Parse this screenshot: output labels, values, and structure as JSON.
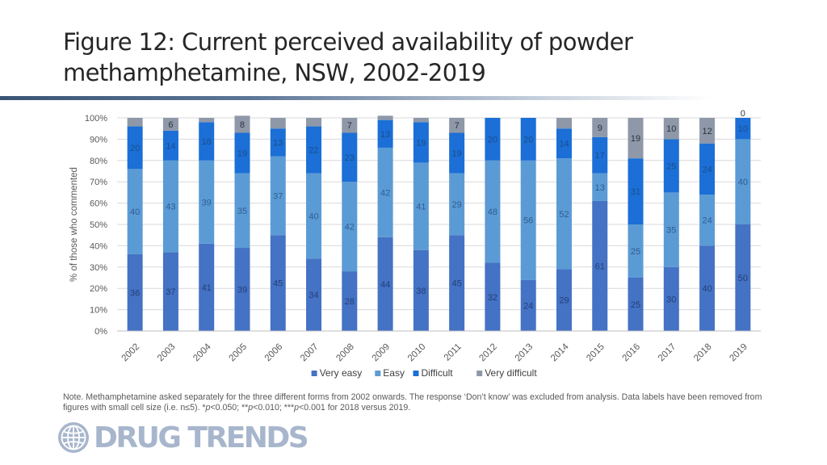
{
  "title": "Figure 12: Current perceived availability of powder methamphetamine, NSW, 2002-2019",
  "note": {
    "pre": "Note. Methamphetamine asked separately for the three different forms from 2002 onwards. The response ‘Don’t know’ was excluded from analysis. Data labels have been removed from figures with small cell size (i.e. n≤5).  *",
    "p1": "p",
    "mid1": "<0.050; **",
    "p2": "p",
    "mid2": "<0.010; ***",
    "p3": "p",
    "post": "<0.001 for 2018 versus 2019."
  },
  "logo": {
    "text": "DRUG TRENDS",
    "icon": "globe-icon"
  },
  "chart_data": {
    "type": "bar",
    "stacked": true,
    "title": "",
    "xlabel": "",
    "ylabel": "% of those who commented",
    "ylim": [
      0,
      100
    ],
    "yticks": [
      "0%",
      "10%",
      "20%",
      "30%",
      "40%",
      "50%",
      "60%",
      "70%",
      "80%",
      "90%",
      "100%"
    ],
    "grid": true,
    "legend_position": "bottom",
    "categories": [
      "2002",
      "2003",
      "2004",
      "2005",
      "2006",
      "2007",
      "2008",
      "2009",
      "2010",
      "2011",
      "2012",
      "2013",
      "2014",
      "2015",
      "2016",
      "2017",
      "2018",
      "2019"
    ],
    "series": [
      {
        "name": "Very easy",
        "color": "#4472c4",
        "values": [
          36,
          37,
          41,
          39,
          45,
          34,
          28,
          44,
          38,
          45,
          32,
          24,
          29,
          61,
          25,
          30,
          40,
          50
        ],
        "labels": [
          "36",
          "37",
          "41",
          "39",
          "45",
          "34",
          "28",
          "44",
          "38",
          "45",
          "32",
          "24",
          "29",
          "61",
          "25",
          "30",
          "40",
          "50"
        ]
      },
      {
        "name": "Easy",
        "color": "#5b9bd5",
        "values": [
          40,
          43,
          39,
          35,
          37,
          40,
          42,
          42,
          41,
          29,
          48,
          56,
          52,
          13,
          25,
          35,
          24,
          40
        ],
        "labels": [
          "40",
          "43",
          "39",
          "35",
          "37",
          "40",
          "42",
          "42",
          "41",
          "29",
          "48",
          "56",
          "52",
          "13",
          "25",
          "35",
          "24",
          "40"
        ]
      },
      {
        "name": "Difficult",
        "color": "#1b6fd6",
        "values": [
          20,
          14,
          18,
          19,
          13,
          22,
          23,
          13,
          19,
          19,
          20,
          20,
          14,
          17,
          31,
          25,
          24,
          10
        ],
        "labels": [
          "20",
          "14",
          "18",
          "19",
          "13",
          "22",
          "23",
          "13",
          "19",
          "19",
          "20",
          "20",
          "14",
          "17",
          "31",
          "25",
          "24",
          "10"
        ]
      },
      {
        "name": "Very difficult",
        "color": "#8e98a8",
        "values": [
          4,
          6,
          2,
          8,
          5,
          4,
          7,
          2,
          2,
          7,
          0,
          0,
          5,
          9,
          19,
          10,
          12,
          0
        ],
        "labels": [
          "",
          "6",
          "",
          "8",
          "",
          "",
          "7",
          "",
          "",
          "7",
          "",
          "",
          "",
          "9",
          "19",
          "10",
          "12",
          "0"
        ]
      }
    ]
  }
}
